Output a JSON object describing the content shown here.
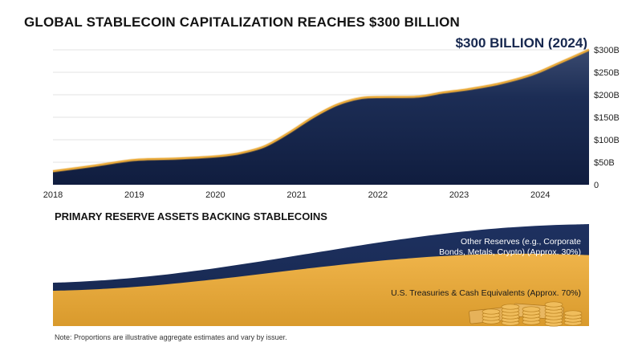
{
  "title": "GLOBAL STABLECOIN CAPITALIZATION REACHES $300 BILLION",
  "callout": "$300 BILLION (2024)",
  "subtitle": "PRIMARY RESERVE ASSETS BACKING STABLECOINS",
  "note": "Note: Proportions are illustrative aggregate estimates and vary by issuer.",
  "colors": {
    "navy": "#17284f",
    "gold": "#e8a93a",
    "grid": "#e3e3e3"
  },
  "chart_data": [
    {
      "type": "area",
      "title": "GLOBAL STABLECOIN CAPITALIZATION REACHES $300 BILLION",
      "annotation": "$300 BILLION (2024)",
      "x_ticks": [
        "2018",
        "2019",
        "2020",
        "2021",
        "2022",
        "2023",
        "2024"
      ],
      "y_ticks": [
        "0",
        "$50B",
        "$100B",
        "$150B",
        "$200B",
        "$250B",
        "$300B"
      ],
      "ylim": [
        0,
        300
      ],
      "xlim": [
        2018,
        2024.6
      ],
      "grid": true,
      "series": [
        {
          "x": [
            2018,
            2018.5,
            2019,
            2019.5,
            2020,
            2020.3,
            2020.6,
            2020.9,
            2021.2,
            2021.5,
            2021.8,
            2022.1,
            2022.5,
            2022.8,
            2023.1,
            2023.5,
            2023.9,
            2024.2,
            2024.6
          ],
          "values": [
            30,
            42,
            55,
            58,
            63,
            70,
            85,
            115,
            150,
            178,
            193,
            195,
            196,
            205,
            212,
            225,
            245,
            268,
            300
          ]
        }
      ]
    },
    {
      "type": "area",
      "title": "PRIMARY RESERVE ASSETS BACKING STABLECOINS",
      "stacked": true,
      "normalized_share": true,
      "series": [
        {
          "name": "U.S. Treasuries & Cash Equivalents (Approx. 70%)",
          "share": 0.7
        },
        {
          "name": "Other Reserves (e.g., Corporate Bonds, Metals, Crypto) (Approx. 30%)",
          "share": 0.3
        }
      ]
    }
  ]
}
